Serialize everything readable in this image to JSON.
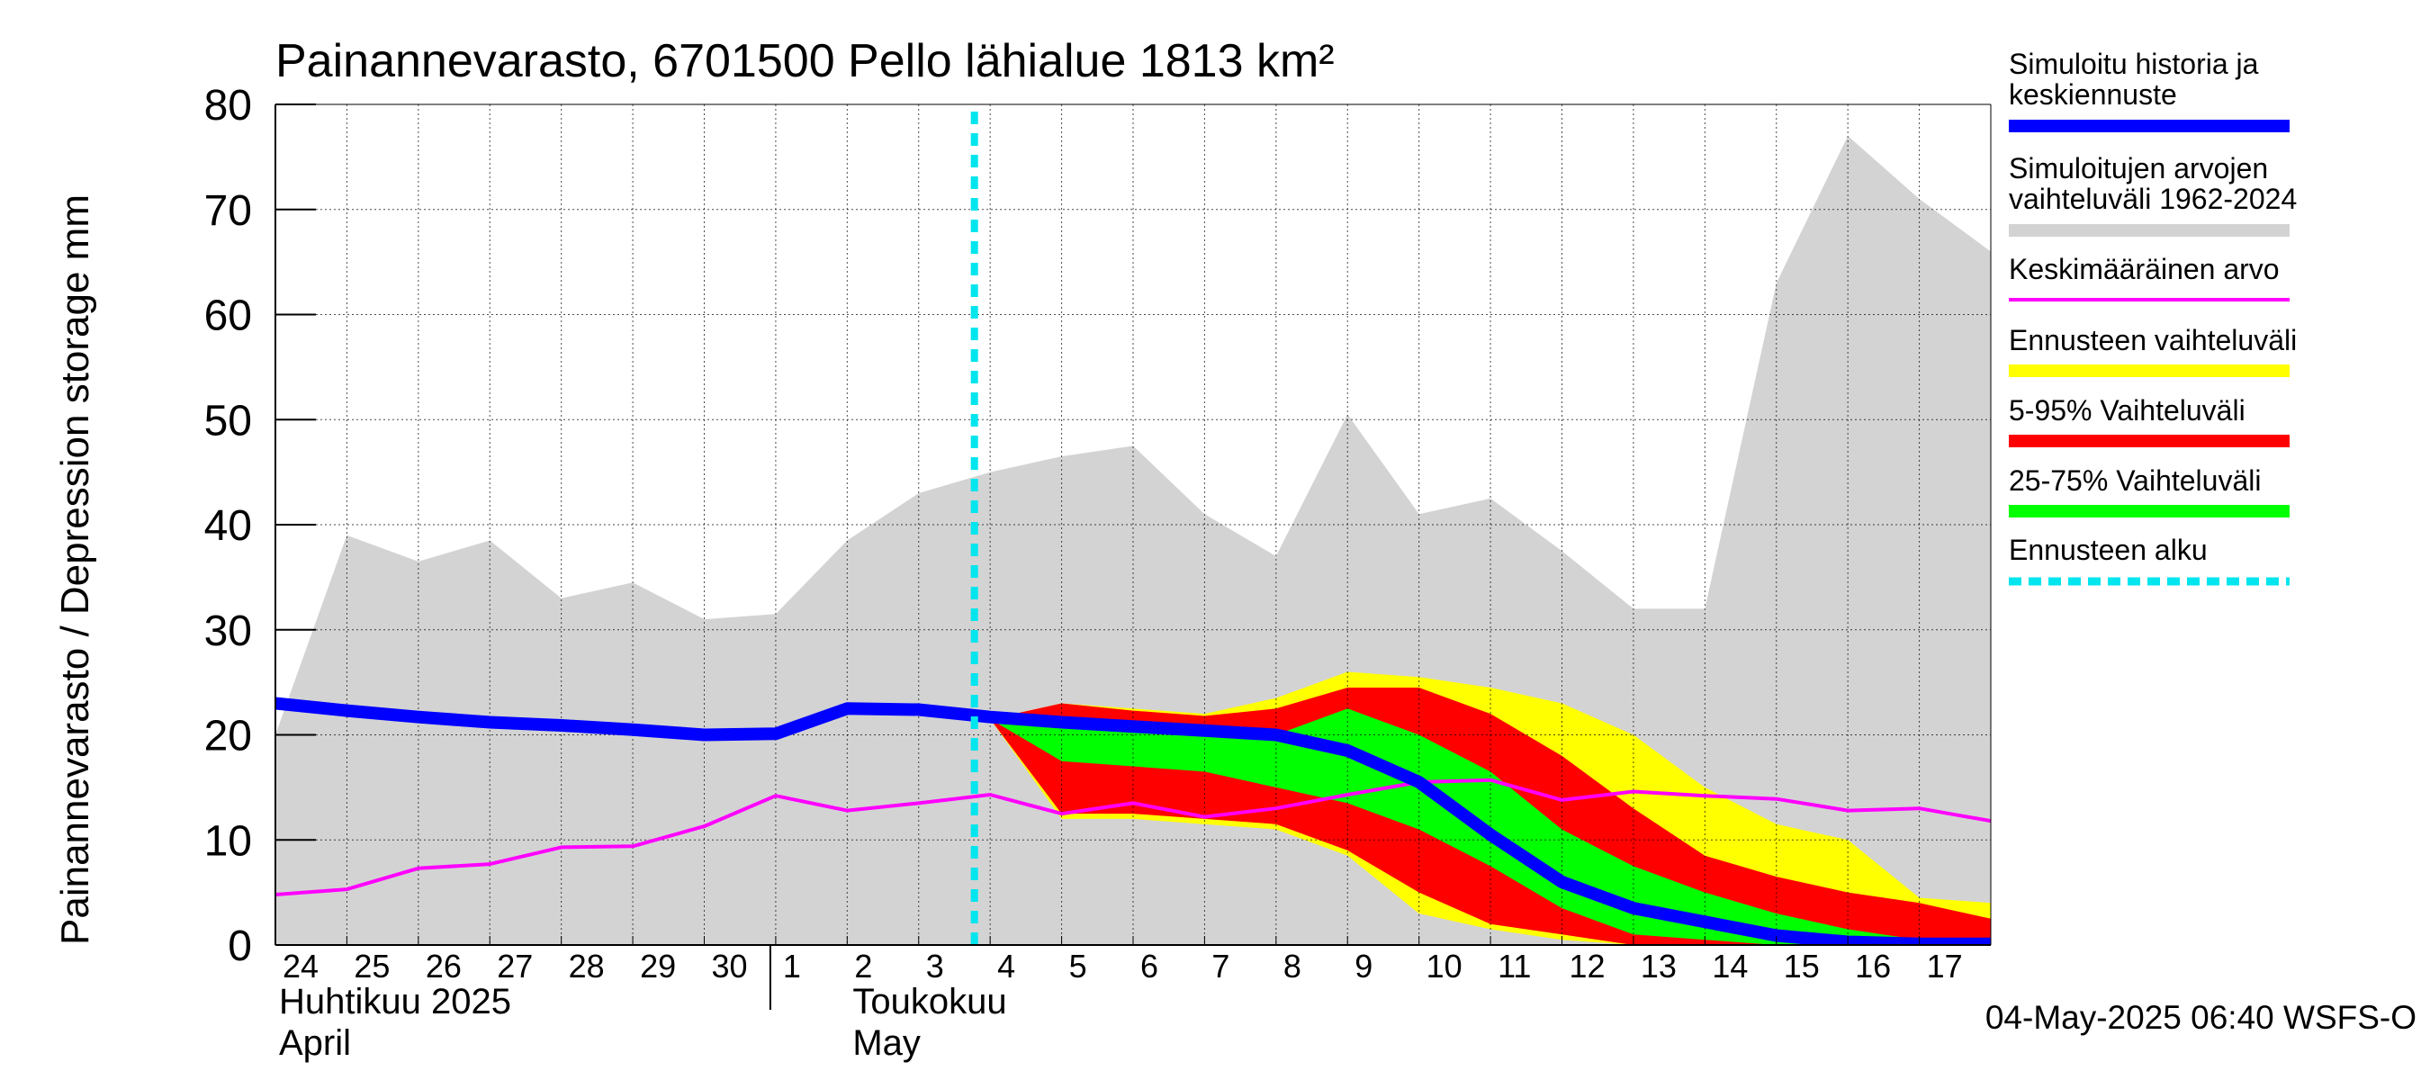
{
  "chart_data": {
    "type": "area",
    "title": "Painannevarasto, 6701500 Pello lähialue 1813 km²",
    "ylabel": "Painannevarasto / Depression storage    mm",
    "ylim": [
      0,
      80
    ],
    "yticks": [
      0,
      10,
      20,
      30,
      40,
      50,
      60,
      70,
      80
    ],
    "xlim": [
      "2025-04-24",
      "2025-05-17"
    ],
    "x_tick_labels": [
      "24",
      "25",
      "26",
      "27",
      "28",
      "29",
      "30",
      "1",
      "2",
      "3",
      "4",
      "5",
      "6",
      "7",
      "8",
      "9",
      "10",
      "11",
      "12",
      "13",
      "14",
      "15",
      "16",
      "17"
    ],
    "month_labels": [
      {
        "line1": "Huhtikuu  2025",
        "line2": "April"
      },
      {
        "line1": "Toukokuu",
        "line2": "May"
      }
    ],
    "grid": true,
    "legend_placement": "right",
    "footer": "04-May-2025 06:40 WSFS-O",
    "forecast_start": "2025-05-04",
    "dates": [
      "2025-04-24",
      "2025-04-25",
      "2025-04-26",
      "2025-04-27",
      "2025-04-28",
      "2025-04-29",
      "2025-04-30",
      "2025-05-01",
      "2025-05-02",
      "2025-05-03",
      "2025-05-04",
      "2025-05-05",
      "2025-05-06",
      "2025-05-07",
      "2025-05-08",
      "2025-05-09",
      "2025-05-10",
      "2025-05-11",
      "2025-05-12",
      "2025-05-13",
      "2025-05-14",
      "2025-05-15",
      "2025-05-16",
      "2025-05-17",
      "2025-05-18"
    ],
    "series": [
      {
        "name": "Simuloitujen arvojen vaihteluväli 1962-2024",
        "kind": "band",
        "color": "#d3d3d3",
        "lower": [
          0,
          0,
          0,
          0,
          0,
          0,
          0,
          0,
          0,
          0,
          0,
          0,
          0,
          0,
          0,
          0,
          0,
          0,
          0,
          0,
          0,
          0,
          0,
          0,
          0
        ],
        "upper": [
          20,
          39,
          36.5,
          38.5,
          33,
          34.5,
          31,
          31.5,
          38.5,
          43,
          45,
          46.5,
          47.5,
          41,
          37,
          50.5,
          41,
          42.5,
          37.5,
          32,
          32,
          63,
          77,
          71,
          66
        ]
      },
      {
        "name": "Ennusteen vaihteluväli",
        "kind": "band",
        "color": "#ffff00",
        "lower": [
          null,
          null,
          null,
          null,
          null,
          null,
          null,
          null,
          null,
          null,
          21.5,
          12,
          12,
          11.5,
          11,
          8.5,
          3,
          1.5,
          0.5,
          0,
          0,
          0,
          0,
          0,
          0
        ],
        "upper": [
          null,
          null,
          null,
          null,
          null,
          null,
          null,
          null,
          null,
          null,
          21.5,
          23,
          22.5,
          22,
          23.5,
          26,
          25.5,
          24.5,
          23,
          20,
          15,
          11.5,
          10,
          4.5,
          4
        ]
      },
      {
        "name": "5-95% Vaihteluväli",
        "kind": "band",
        "color": "#ff0000",
        "lower": [
          null,
          null,
          null,
          null,
          null,
          null,
          null,
          null,
          null,
          null,
          21.5,
          12.5,
          12.5,
          12,
          11.5,
          9,
          5,
          2,
          1,
          0,
          0,
          0,
          0,
          0,
          0
        ],
        "upper": [
          null,
          null,
          null,
          null,
          null,
          null,
          null,
          null,
          null,
          null,
          21.5,
          23,
          22.3,
          21.8,
          22.5,
          24.5,
          24.5,
          22,
          18,
          13,
          8.5,
          6.5,
          5,
          4,
          2.5
        ]
      },
      {
        "name": "25-75% Vaihteluväli",
        "kind": "band",
        "color": "#00ff00",
        "lower": [
          null,
          null,
          null,
          null,
          null,
          null,
          null,
          null,
          null,
          null,
          21.5,
          17.5,
          17,
          16.5,
          15,
          13.5,
          11,
          7.5,
          3.5,
          1,
          0.5,
          0,
          0,
          0,
          0
        ],
        "upper": [
          null,
          null,
          null,
          null,
          null,
          null,
          null,
          null,
          null,
          null,
          21.5,
          21.5,
          21,
          20.5,
          20,
          22.5,
          20,
          16.5,
          11,
          7.5,
          5,
          3,
          1.5,
          0.5,
          0
        ]
      },
      {
        "name": "Keskimääräinen arvo",
        "kind": "line",
        "color": "#ff00ff",
        "values": [
          4.8,
          5.3,
          7.3,
          7.7,
          9.3,
          9.4,
          11.3,
          14.2,
          12.8,
          13.5,
          14.3,
          12.5,
          13.5,
          12.2,
          13,
          14.3,
          15.5,
          15.7,
          13.8,
          14.6,
          14.2,
          13.9,
          12.8,
          13,
          11.8
        ]
      },
      {
        "name": "Simuloitu historia ja keskiennuste",
        "kind": "line",
        "color": "#0000ff",
        "values": [
          23,
          22.3,
          21.7,
          21.2,
          20.9,
          20.5,
          20,
          20.1,
          22.5,
          22.4,
          21.7,
          21.2,
          20.8,
          20.4,
          20,
          18.5,
          15.5,
          10.5,
          6,
          3.5,
          2.2,
          0.9,
          0.3,
          0.1,
          0.1
        ]
      }
    ],
    "legend": [
      {
        "label": "Simuloitu historia ja keskiennuste",
        "color": "#0000ff",
        "style": "solid"
      },
      {
        "label": "Simuloitujen arvojen vaihteluväli 1962-2024",
        "color": "#d3d3d3",
        "style": "solid"
      },
      {
        "label": "Keskimääräinen arvo",
        "color": "#ff00ff",
        "style": "thin"
      },
      {
        "label": "Ennusteen vaihteluväli",
        "color": "#ffff00",
        "style": "solid"
      },
      {
        "label": "5-95% Vaihteluväli",
        "color": "#ff0000",
        "style": "solid"
      },
      {
        "label": "25-75% Vaihteluväli",
        "color": "#00ff00",
        "style": "solid"
      },
      {
        "label": "Ennusteen alku",
        "color": "#00e5ee",
        "style": "dashed"
      }
    ]
  }
}
